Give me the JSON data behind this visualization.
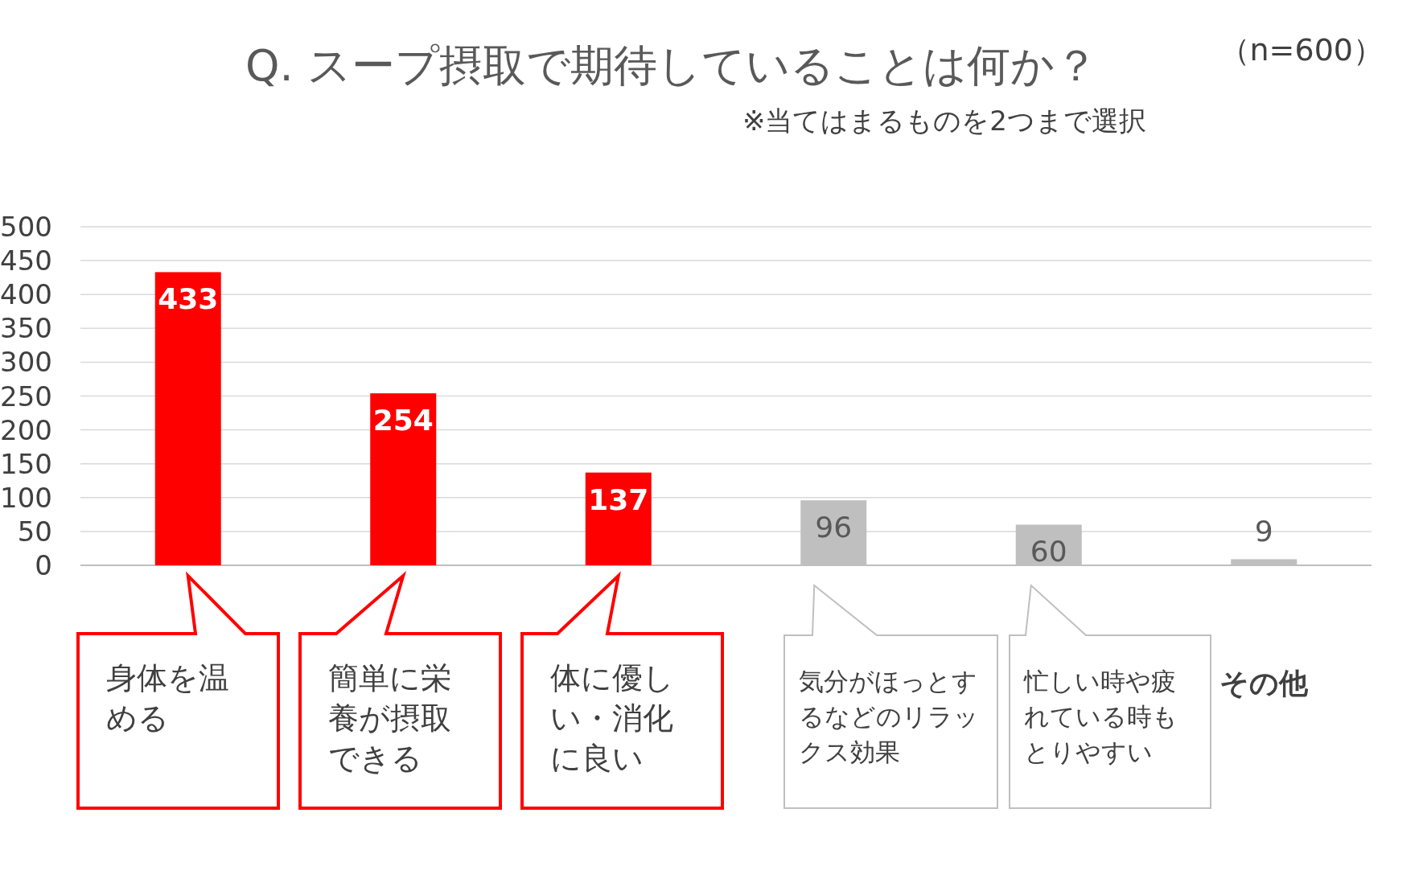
{
  "chart_data": {
    "type": "bar",
    "title": "Q. スープ摂取で期待していることは何か？",
    "subtitle": "※当てはまるものを2つまで選択",
    "annotations": [
      "（n=600）"
    ],
    "categories": [
      "身体を温める",
      "簡単に栄養が摂取できる",
      "体に優しい・消化に良い",
      "気分がほっとするなどのリラックス効果",
      "忙しい時や疲れている時もとりやすい",
      "その他"
    ],
    "values": [
      433,
      254,
      137,
      96,
      60,
      9
    ],
    "colors": [
      "#ff0000",
      "#ff0000",
      "#ff0000",
      "#bfbfbf",
      "#bfbfbf",
      "#bfbfbf"
    ],
    "ylim": [
      0,
      500
    ],
    "yticks": [
      0,
      50,
      100,
      150,
      200,
      250,
      300,
      350,
      400,
      450,
      500
    ],
    "grid": "y",
    "data_labels": true
  }
}
